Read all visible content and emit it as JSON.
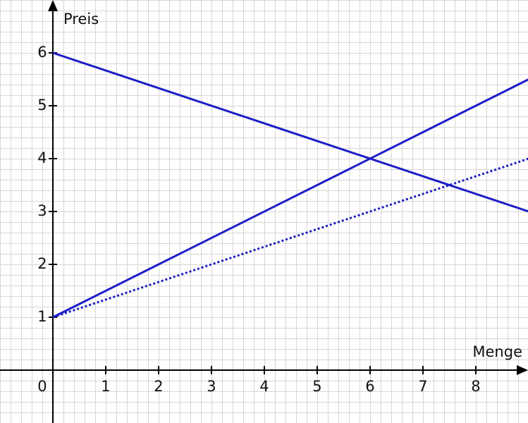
{
  "chart_data": {
    "type": "line",
    "xlabel": "Menge",
    "ylabel": "Preis",
    "x": [
      0,
      9
    ],
    "series": [
      {
        "color": "#1c1cc8",
        "values": [
          6,
          3
        ],
        "dotted": false
      },
      {
        "color": "#1c1cc8",
        "values": [
          1,
          5.5
        ],
        "dotted": false
      },
      {
        "color": "#1c1cc8",
        "values": [
          1,
          4
        ],
        "dotted": true
      }
    ],
    "xlim": [
      -1,
      8.987
    ],
    "ylim": [
      -1,
      7
    ],
    "xticks": [
      0,
      1,
      2,
      3,
      4,
      5,
      6,
      7,
      8
    ],
    "yticks": [
      1,
      2,
      3,
      4,
      5,
      6
    ],
    "grid": true
  }
}
